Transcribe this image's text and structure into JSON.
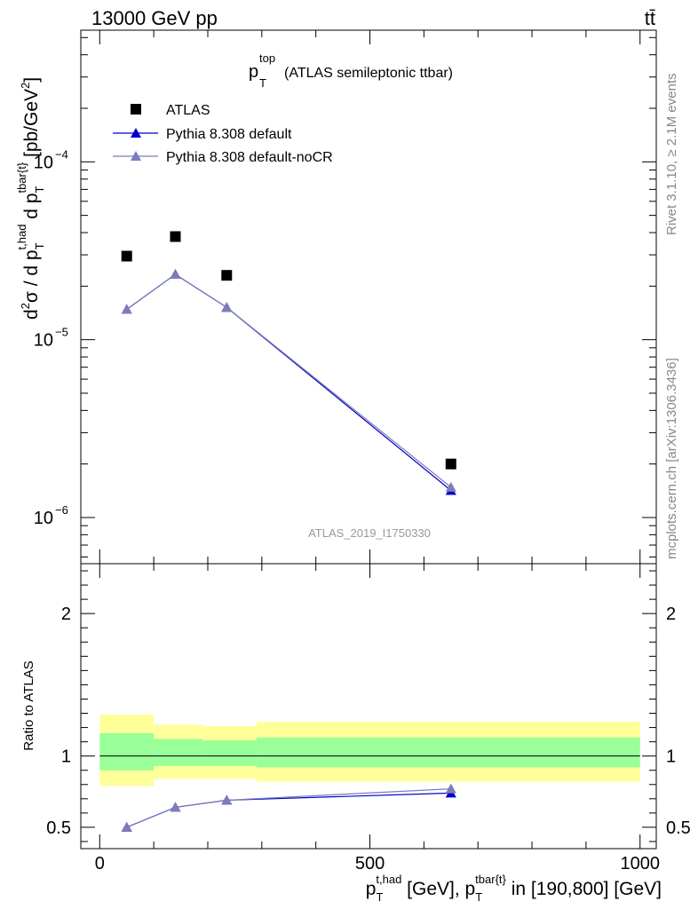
{
  "header": {
    "energy_label": "13000 GeV pp",
    "process_label": "tt̄"
  },
  "side_labels": {
    "rivet": "Rivet 3.1.10, ≥ 2.1M events",
    "mcplots": "mcplots.cern.ch [arXiv:1306.3436]"
  },
  "chart_data": [
    {
      "type": "scatter",
      "panel": "main",
      "title": "(ATLAS semileptonic ttbar)",
      "title_var": "p",
      "title_sup": "top",
      "title_sub": "T",
      "analysis_id": "ATLAS_2019_I1750330",
      "ylabel": "d²σ / d p_T^{t,had} d p_T^{tbar{t}} [pb/GeV²]",
      "yscale": "log",
      "ylim": [
        5.5e-07,
        0.00055
      ],
      "xlim": [
        -0.03,
        1.03
      ],
      "y_ticks": [
        {
          "value": 1e-06,
          "base": "10",
          "exp": "−6"
        },
        {
          "value": 1e-05,
          "base": "10",
          "exp": "−5"
        },
        {
          "value": 0.0001,
          "base": "10",
          "exp": "−4"
        }
      ],
      "legend_position": "top-left",
      "series": [
        {
          "name": "ATLAS",
          "marker": "square",
          "color": "#000000",
          "x": [
            50,
            140,
            235,
            650
          ],
          "y": [
            2.95e-05,
            3.8e-05,
            2.3e-05,
            2e-06
          ]
        },
        {
          "name": "Pythia 8.308 default",
          "marker": "triangle",
          "color": "#0000cc",
          "x": [
            50,
            140,
            235,
            650
          ],
          "y": [
            1.48e-05,
            2.33e-05,
            1.52e-05,
            1.42e-06
          ]
        },
        {
          "name": "Pythia 8.308 default-noCR",
          "marker": "triangle",
          "color": "#7c7cb8",
          "x": [
            50,
            140,
            235,
            650
          ],
          "y": [
            1.48e-05,
            2.33e-05,
            1.52e-05,
            1.48e-06
          ]
        }
      ]
    },
    {
      "type": "line",
      "panel": "ratio",
      "ylabel": "Ratio to ATLAS",
      "ylim": [
        0.35,
        2.35
      ],
      "xlim": [
        -35,
        1030
      ],
      "y_ticks": [
        {
          "value": 0.5,
          "label": "0.5"
        },
        {
          "value": 1,
          "label": "1"
        },
        {
          "value": 2,
          "label": "2"
        }
      ],
      "x_ticks": [
        {
          "value": 0,
          "label": "0"
        },
        {
          "value": 500,
          "label": "500"
        },
        {
          "value": 1000,
          "label": "1000"
        }
      ],
      "xlabel": "p_T^{t,had} [GeV], p_T^{tbar{t}} in [190,800] [GeV]",
      "bands": [
        {
          "name": "total uncertainty",
          "color": "#ffff99",
          "segments": [
            {
              "x0": 0,
              "x1": 100,
              "lo": 0.79,
              "hi": 1.29
            },
            {
              "x0": 100,
              "x1": 190,
              "lo": 0.84,
              "hi": 1.22
            },
            {
              "x0": 190,
              "x1": 290,
              "lo": 0.84,
              "hi": 1.21
            },
            {
              "x0": 290,
              "x1": 1000,
              "lo": 0.82,
              "hi": 1.24
            }
          ]
        },
        {
          "name": "stat uncertainty",
          "color": "#99ff99",
          "segments": [
            {
              "x0": 0,
              "x1": 100,
              "lo": 0.9,
              "hi": 1.16
            },
            {
              "x0": 100,
              "x1": 190,
              "lo": 0.93,
              "hi": 1.12
            },
            {
              "x0": 190,
              "x1": 290,
              "lo": 0.93,
              "hi": 1.11
            },
            {
              "x0": 290,
              "x1": 1000,
              "lo": 0.92,
              "hi": 1.13
            }
          ]
        }
      ],
      "reference_line": 1,
      "series": [
        {
          "name": "Pythia 8.308 default",
          "color": "#0000cc",
          "marker": "triangle",
          "x": [
            50,
            140,
            235,
            650
          ],
          "y": [
            0.5,
            0.64,
            0.69,
            0.74
          ]
        },
        {
          "name": "Pythia 8.308 default-noCR",
          "color": "#7c7cb8",
          "marker": "triangle",
          "x": [
            50,
            140,
            235,
            650
          ],
          "y": [
            0.5,
            0.64,
            0.69,
            0.77
          ]
        }
      ]
    }
  ]
}
